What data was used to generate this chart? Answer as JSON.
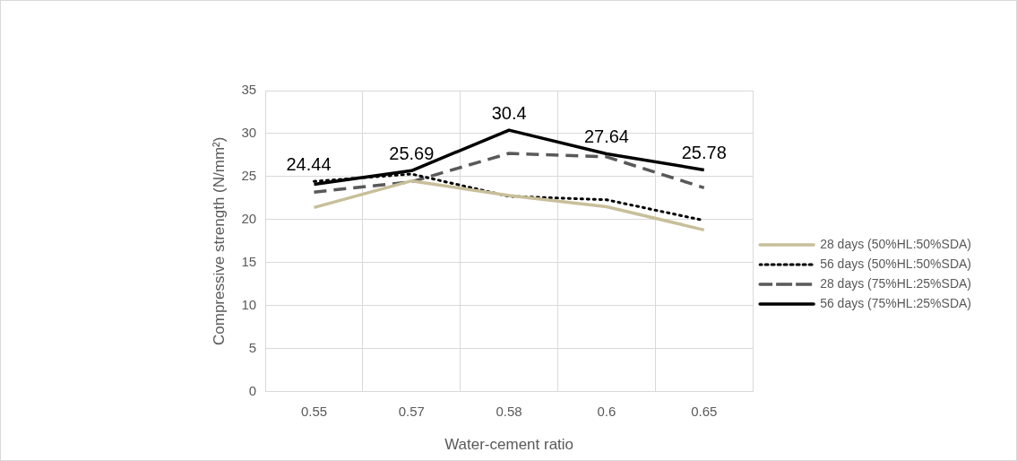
{
  "chart_data": {
    "type": "line",
    "xlabel": "Water-cement ratio",
    "ylabel": "Compressive strength (N/mm²)",
    "categories": [
      "0.55",
      "0.57",
      "0.58",
      "0.6",
      "0.65"
    ],
    "ylim": [
      0,
      35
    ],
    "yticks": [
      0,
      5,
      10,
      15,
      20,
      25,
      30,
      35
    ],
    "grid": true,
    "legend": "right",
    "marker": "none",
    "series": [
      {
        "name": "28 days (50%HL:50%SDA)",
        "color": "#c8bf9a",
        "line_style": "solid",
        "values": [
          21.4,
          24.5,
          22.8,
          21.5,
          18.8
        ]
      },
      {
        "name": "56 days (50%HL:50%SDA)",
        "color": "#000000",
        "line_style": "dotted",
        "values": [
          24.44,
          25.3,
          22.7,
          22.3,
          19.9
        ],
        "value_labels": [
          "24.44",
          null,
          null,
          null,
          null
        ]
      },
      {
        "name": "28 days (75%HL:25%SDA)",
        "color": "#595959",
        "line_style": "dashed",
        "values": [
          23.2,
          24.4,
          27.7,
          27.3,
          23.7
        ]
      },
      {
        "name": "56 days (75%HL:25%SDA)",
        "color": "#000000",
        "line_style": "solid",
        "values": [
          24.1,
          25.69,
          30.4,
          27.64,
          25.78
        ],
        "value_labels": [
          null,
          "25.69",
          "30.4",
          "27.64",
          "25.78"
        ]
      }
    ]
  }
}
